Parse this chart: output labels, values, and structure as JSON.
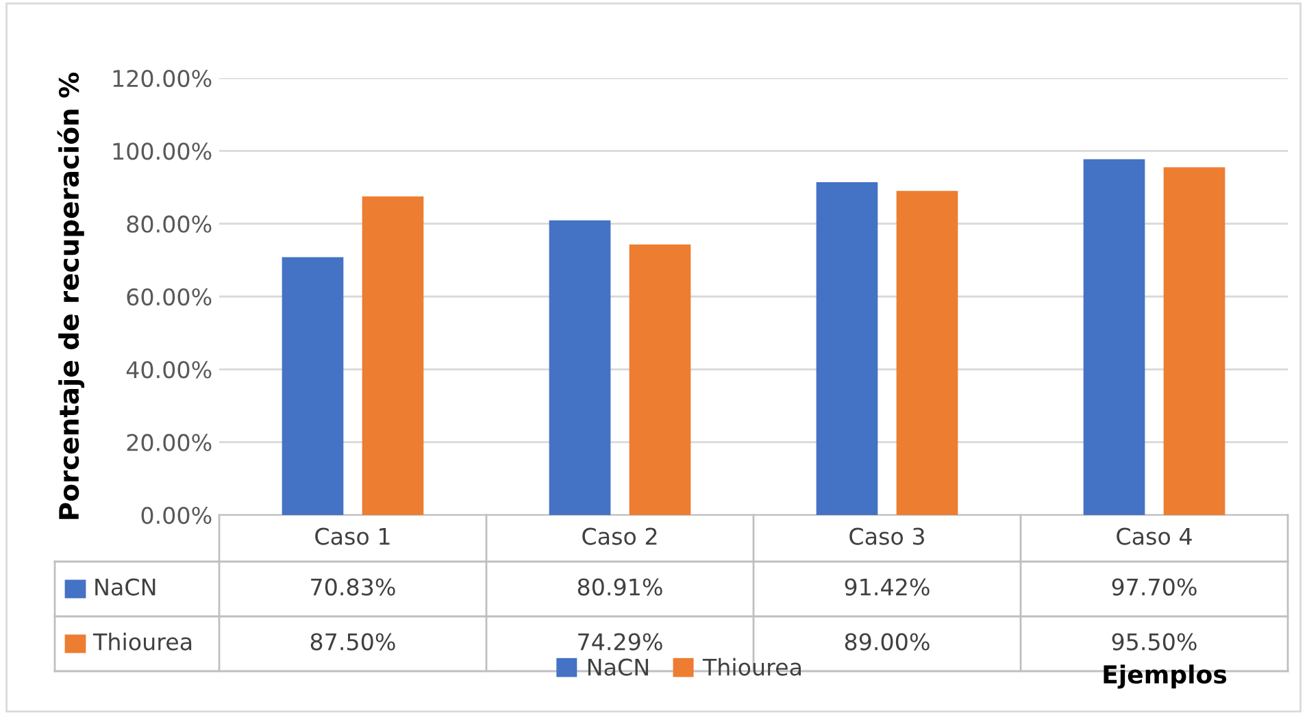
{
  "chart_data": {
    "type": "bar",
    "ylabel": "Porcentaje de recuperación %",
    "xlabel": "Ejemplos",
    "categories": [
      "Caso 1",
      "Caso 2",
      "Caso 3",
      "Caso 4"
    ],
    "series": [
      {
        "name": "NaCN",
        "color": "#4472c4",
        "values": [
          70.83,
          80.91,
          91.42,
          97.7
        ],
        "value_labels": [
          "70.83%",
          "80.91%",
          "91.42%",
          "97.70%"
        ]
      },
      {
        "name": "Thiourea",
        "color": "#ed7d31",
        "values": [
          87.5,
          74.29,
          89.0,
          95.5
        ],
        "value_labels": [
          "87.50%",
          "74.29%",
          "89.00%",
          "95.50%"
        ]
      }
    ],
    "ylim": [
      0,
      120
    ],
    "yticks": [
      {
        "value": 0,
        "label": "0.00%"
      },
      {
        "value": 20,
        "label": "20.00%"
      },
      {
        "value": 40,
        "label": "40.00%"
      },
      {
        "value": 60,
        "label": "60.00%"
      },
      {
        "value": 80,
        "label": "80.00%"
      },
      {
        "value": 100,
        "label": "100.00%"
      },
      {
        "value": 120,
        "label": "120.00%"
      }
    ],
    "grid": "y",
    "legend": "bottom"
  }
}
